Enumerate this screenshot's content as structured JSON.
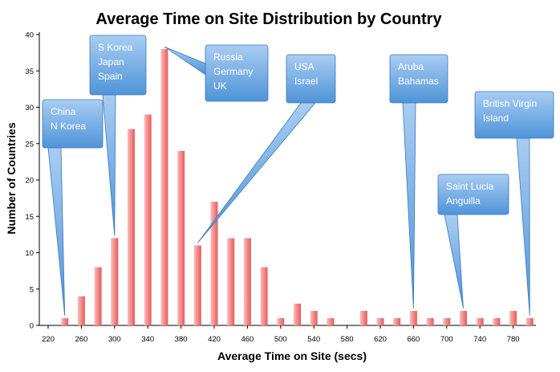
{
  "chart_data": {
    "type": "bar",
    "title": "Average Time on Site Distribution by Country",
    "xlabel": "Average Time on Site (secs)",
    "ylabel": "Number of Countries",
    "ylim": [
      0,
      40
    ],
    "yticks": [
      0,
      5,
      10,
      15,
      20,
      25,
      30,
      35,
      40
    ],
    "x_tick_labels": [
      "220",
      "260",
      "300",
      "340",
      "380",
      "420",
      "460",
      "500",
      "540",
      "580",
      "620",
      "660",
      "700",
      "740",
      "780"
    ],
    "x": [
      240,
      260,
      280,
      300,
      320,
      340,
      360,
      380,
      400,
      420,
      440,
      460,
      480,
      500,
      520,
      540,
      560,
      580,
      600,
      620,
      640,
      660,
      680,
      700,
      720,
      740,
      760,
      780,
      800
    ],
    "values": [
      1,
      4,
      8,
      12,
      27,
      29,
      38,
      24,
      11,
      17,
      12,
      12,
      8,
      1,
      3,
      2,
      1,
      0,
      2,
      1,
      1,
      2,
      1,
      1,
      2,
      1,
      1,
      2,
      1
    ],
    "grid": false,
    "bar_color": "#f47c7c",
    "callout_color": "#6aa6e0",
    "annotations": [
      {
        "lines": [
          "China",
          "N Korea"
        ],
        "x": 240,
        "value": 1
      },
      {
        "lines": [
          "S Korea",
          "Japan",
          "Spain"
        ],
        "x": 300,
        "value": 12
      },
      {
        "lines": [
          "Russia",
          "Germany",
          "UK"
        ],
        "x": 360,
        "value": 38
      },
      {
        "lines": [
          "USA",
          "Israel"
        ],
        "x": 400,
        "value": 11
      },
      {
        "lines": [
          "Aruba",
          "Bahamas"
        ],
        "x": 660,
        "value": 2
      },
      {
        "lines": [
          "Saint Lucia",
          "Anguilla"
        ],
        "x": 720,
        "value": 2
      },
      {
        "lines": [
          "British Virgin",
          "Island"
        ],
        "x": 800,
        "value": 1
      }
    ]
  }
}
